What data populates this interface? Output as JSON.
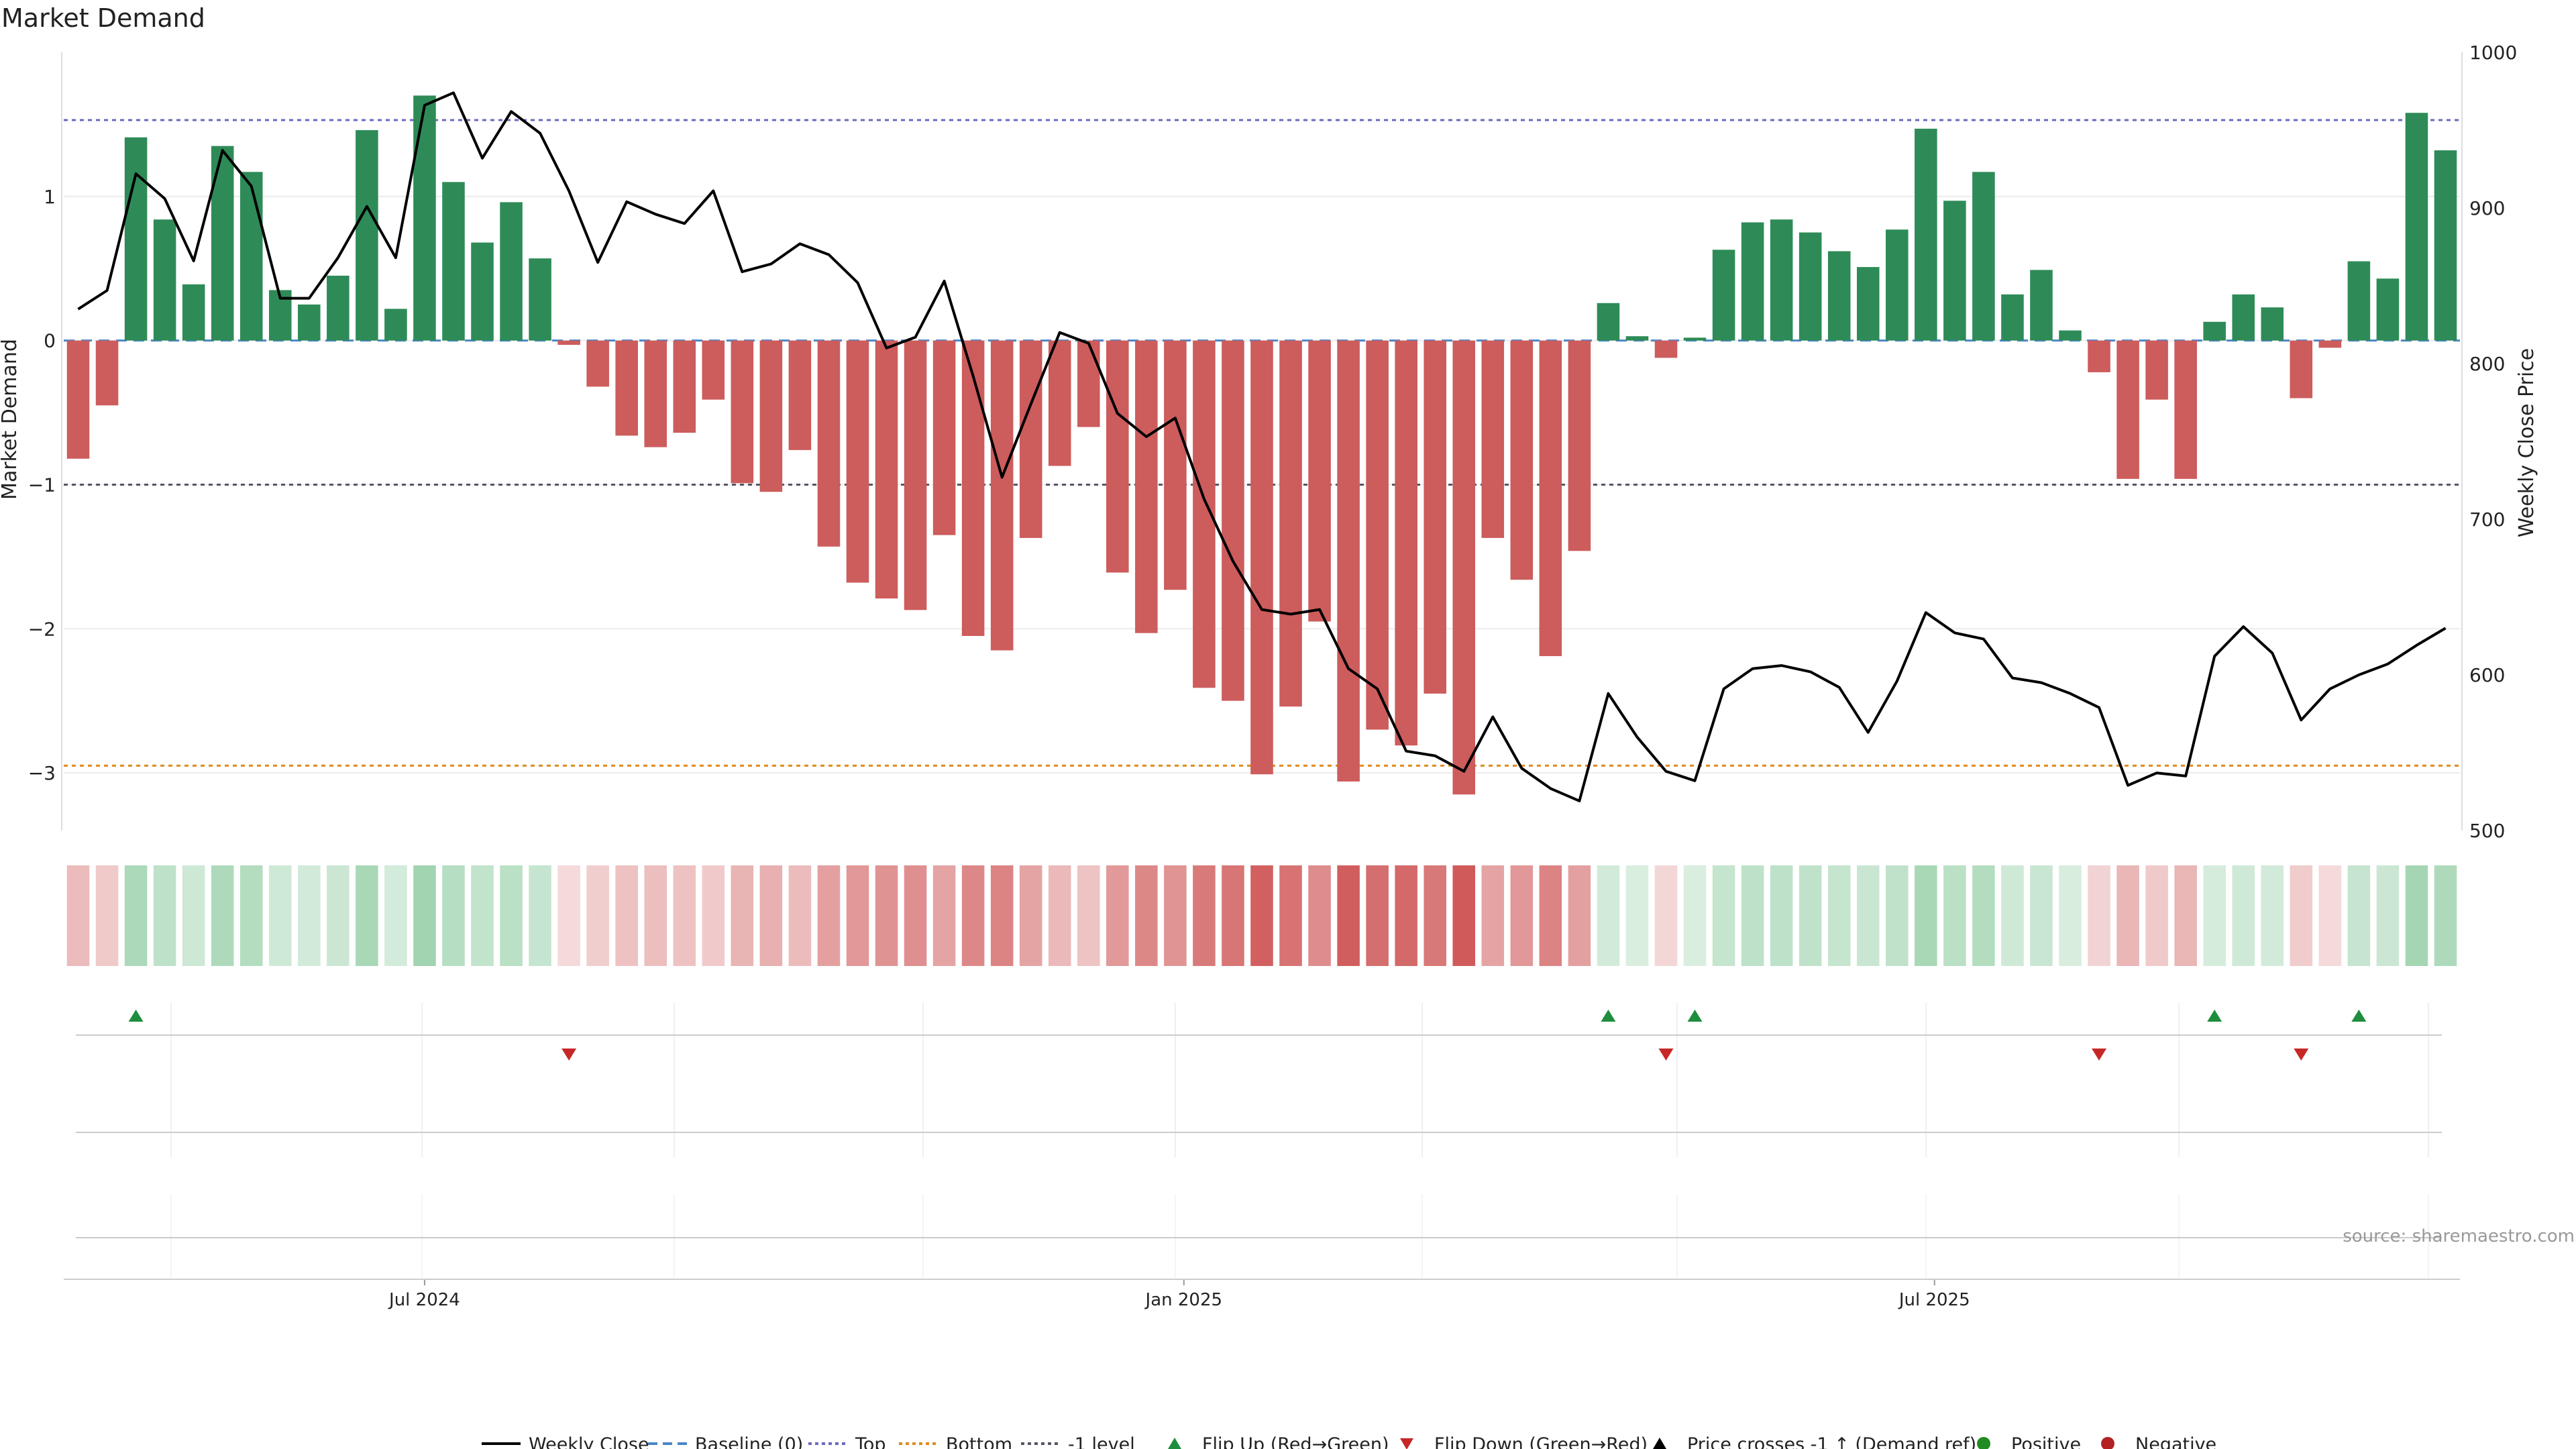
{
  "chart_data": {
    "type": "bar",
    "title": "Market Demand",
    "ylabel": "Market Demand",
    "y2label": "Weekly Close Price",
    "source": "source: sharemaestro.com",
    "ylim": [
      -3.4,
      2.0
    ],
    "y2lim": [
      500,
      1000
    ],
    "yticks": [
      1,
      0,
      -1,
      -2,
      -3
    ],
    "ytick_labels": [
      "1",
      "0",
      "−1",
      "−2",
      "−3"
    ],
    "y2ticks": [
      1000,
      900,
      800,
      700,
      600,
      500
    ],
    "y2tick_labels": [
      "1000",
      "900",
      "800",
      "700",
      "600",
      "500"
    ],
    "xtick_labels": [
      "Jul 2024",
      "Jan 2025",
      "Jul 2025"
    ],
    "xtick_index": [
      12.5,
      38.8,
      64.8
    ],
    "reference_lines": {
      "baseline": 0,
      "top": 1.53,
      "bottom": -2.95,
      "minus_one": -1
    },
    "demand": [
      -0.82,
      -0.45,
      1.41,
      0.84,
      0.39,
      1.35,
      1.17,
      0.35,
      0.25,
      0.45,
      1.46,
      0.22,
      1.7,
      1.1,
      0.68,
      0.96,
      0.57,
      -0.03,
      -0.32,
      -0.66,
      -0.74,
      -0.64,
      -0.41,
      -0.99,
      -1.05,
      -0.76,
      -1.43,
      -1.68,
      -1.79,
      -1.87,
      -1.35,
      -2.05,
      -2.15,
      -1.37,
      -0.87,
      -0.6,
      -1.61,
      -2.03,
      -1.73,
      -2.41,
      -2.5,
      -3.01,
      -2.54,
      -1.95,
      -3.06,
      -2.7,
      -2.81,
      -2.45,
      -3.15,
      -1.37,
      -1.66,
      -2.19,
      -1.46,
      0.26,
      0.03,
      -0.12,
      0.02,
      0.63,
      0.82,
      0.84,
      0.75,
      0.62,
      0.51,
      0.77,
      1.47,
      0.97,
      1.17,
      0.32,
      0.49,
      0.07,
      -0.22,
      -0.96,
      -0.41,
      -0.96,
      0.13,
      0.32,
      0.23,
      -0.4,
      -0.05,
      0.55,
      0.43,
      1.58,
      1.32
    ],
    "price": [
      835,
      847,
      922,
      906,
      866,
      937,
      914,
      842,
      842,
      868,
      901,
      868,
      966,
      974,
      932,
      962,
      948,
      911,
      865,
      904,
      896,
      890,
      911,
      859,
      864,
      877,
      870,
      852,
      810,
      817,
      853,
      792,
      727,
      774,
      820,
      813,
      768,
      753,
      765,
      713,
      673,
      642,
      639,
      642,
      604,
      591,
      551,
      548,
      538,
      573,
      540,
      527,
      519,
      588,
      560,
      538,
      532,
      591,
      604,
      606,
      602,
      592,
      563,
      596,
      640,
      627,
      623,
      598,
      595,
      588,
      579,
      529,
      537,
      535,
      612,
      631,
      614,
      571,
      591,
      600,
      607,
      619,
      630
    ],
    "flip_up_index": [
      2,
      53,
      56,
      74,
      79
    ],
    "flip_down_index": [
      17,
      55,
      70,
      77
    ],
    "legend": [
      "Weekly Close",
      "Baseline (0)",
      "Top",
      "Bottom",
      "-1 level",
      "Flip Up (Red→Green)",
      "Flip Down (Green→Red)",
      "Price crosses -1 ↑ (Demand ref)",
      "Positive",
      "Negative"
    ]
  },
  "colors": {
    "positive": "#2e8b57",
    "negative": "#cd5c5c",
    "price": "#000000",
    "baseline": "#4a86c8",
    "top": "#6a6abf",
    "bottom": "#e08a1e",
    "minus_one": "#555566",
    "flip_up": "#1e8e3e",
    "flip_down": "#c62828",
    "positive_dot": "#228b22",
    "negative_dot": "#b22222"
  }
}
